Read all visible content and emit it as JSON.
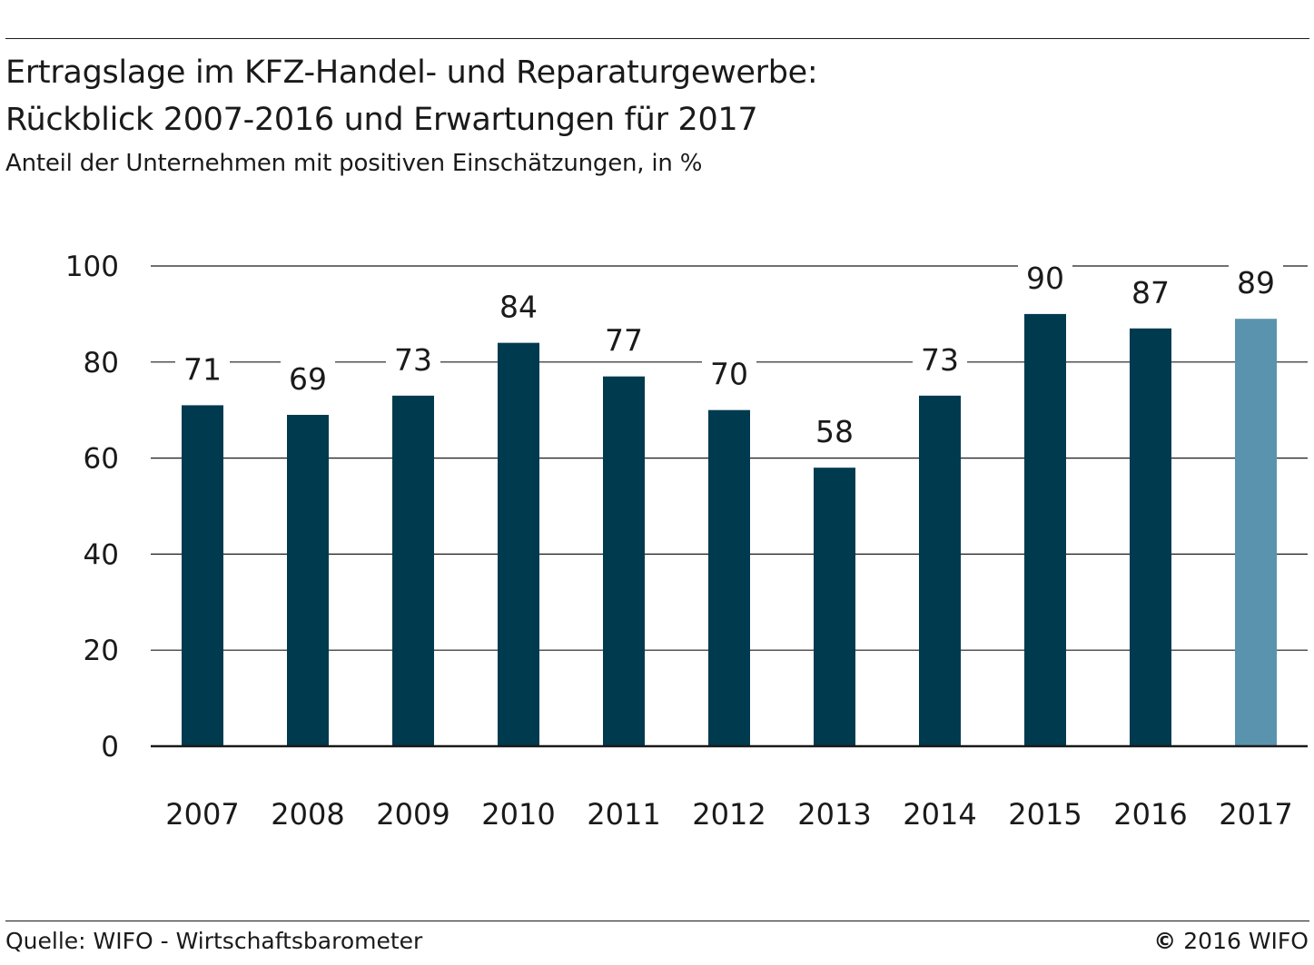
{
  "title_line1": "Ertragslage im KFZ-Handel- und Reparaturgewerbe:",
  "title_line2": "Rückblick 2007-2016 und Erwartungen für 2017",
  "subtitle": "Anteil der Unternehmen mit positiven Einschätzungen, in %",
  "source": "Quelle: WIFO - Wirtschaftsbarometer",
  "copyright_symbol": "©",
  "copyright_text": "2016 WIFO",
  "colors": {
    "bar": "#003a4f",
    "bar_forecast": "#5a93ad",
    "grid": "#1a1a1a",
    "text": "#1a1a1a"
  },
  "chart_data": {
    "type": "bar",
    "title": "Ertragslage im KFZ-Handel- und Reparaturgewerbe: Rückblick 2007-2016 und Erwartungen für 2017",
    "subtitle": "Anteil der Unternehmen mit positiven Einschätzungen, in %",
    "categories": [
      "2007",
      "2008",
      "2009",
      "2010",
      "2011",
      "2012",
      "2013",
      "2014",
      "2015",
      "2016",
      "2017"
    ],
    "values": [
      71,
      69,
      73,
      84,
      77,
      70,
      58,
      73,
      90,
      87,
      89
    ],
    "forecast": [
      false,
      false,
      false,
      false,
      false,
      false,
      false,
      false,
      false,
      false,
      true
    ],
    "value_labels": [
      "71",
      "69",
      "73",
      "84",
      "77",
      "70",
      "58",
      "73",
      "90",
      "87",
      "89"
    ],
    "xlabel": "",
    "ylabel": "",
    "ylim": [
      0,
      100
    ],
    "yticks": [
      0,
      20,
      40,
      60,
      80,
      100
    ],
    "ytick_labels": [
      "0",
      "20",
      "40",
      "60",
      "80",
      "100"
    ],
    "grid": true,
    "legend": "none"
  }
}
